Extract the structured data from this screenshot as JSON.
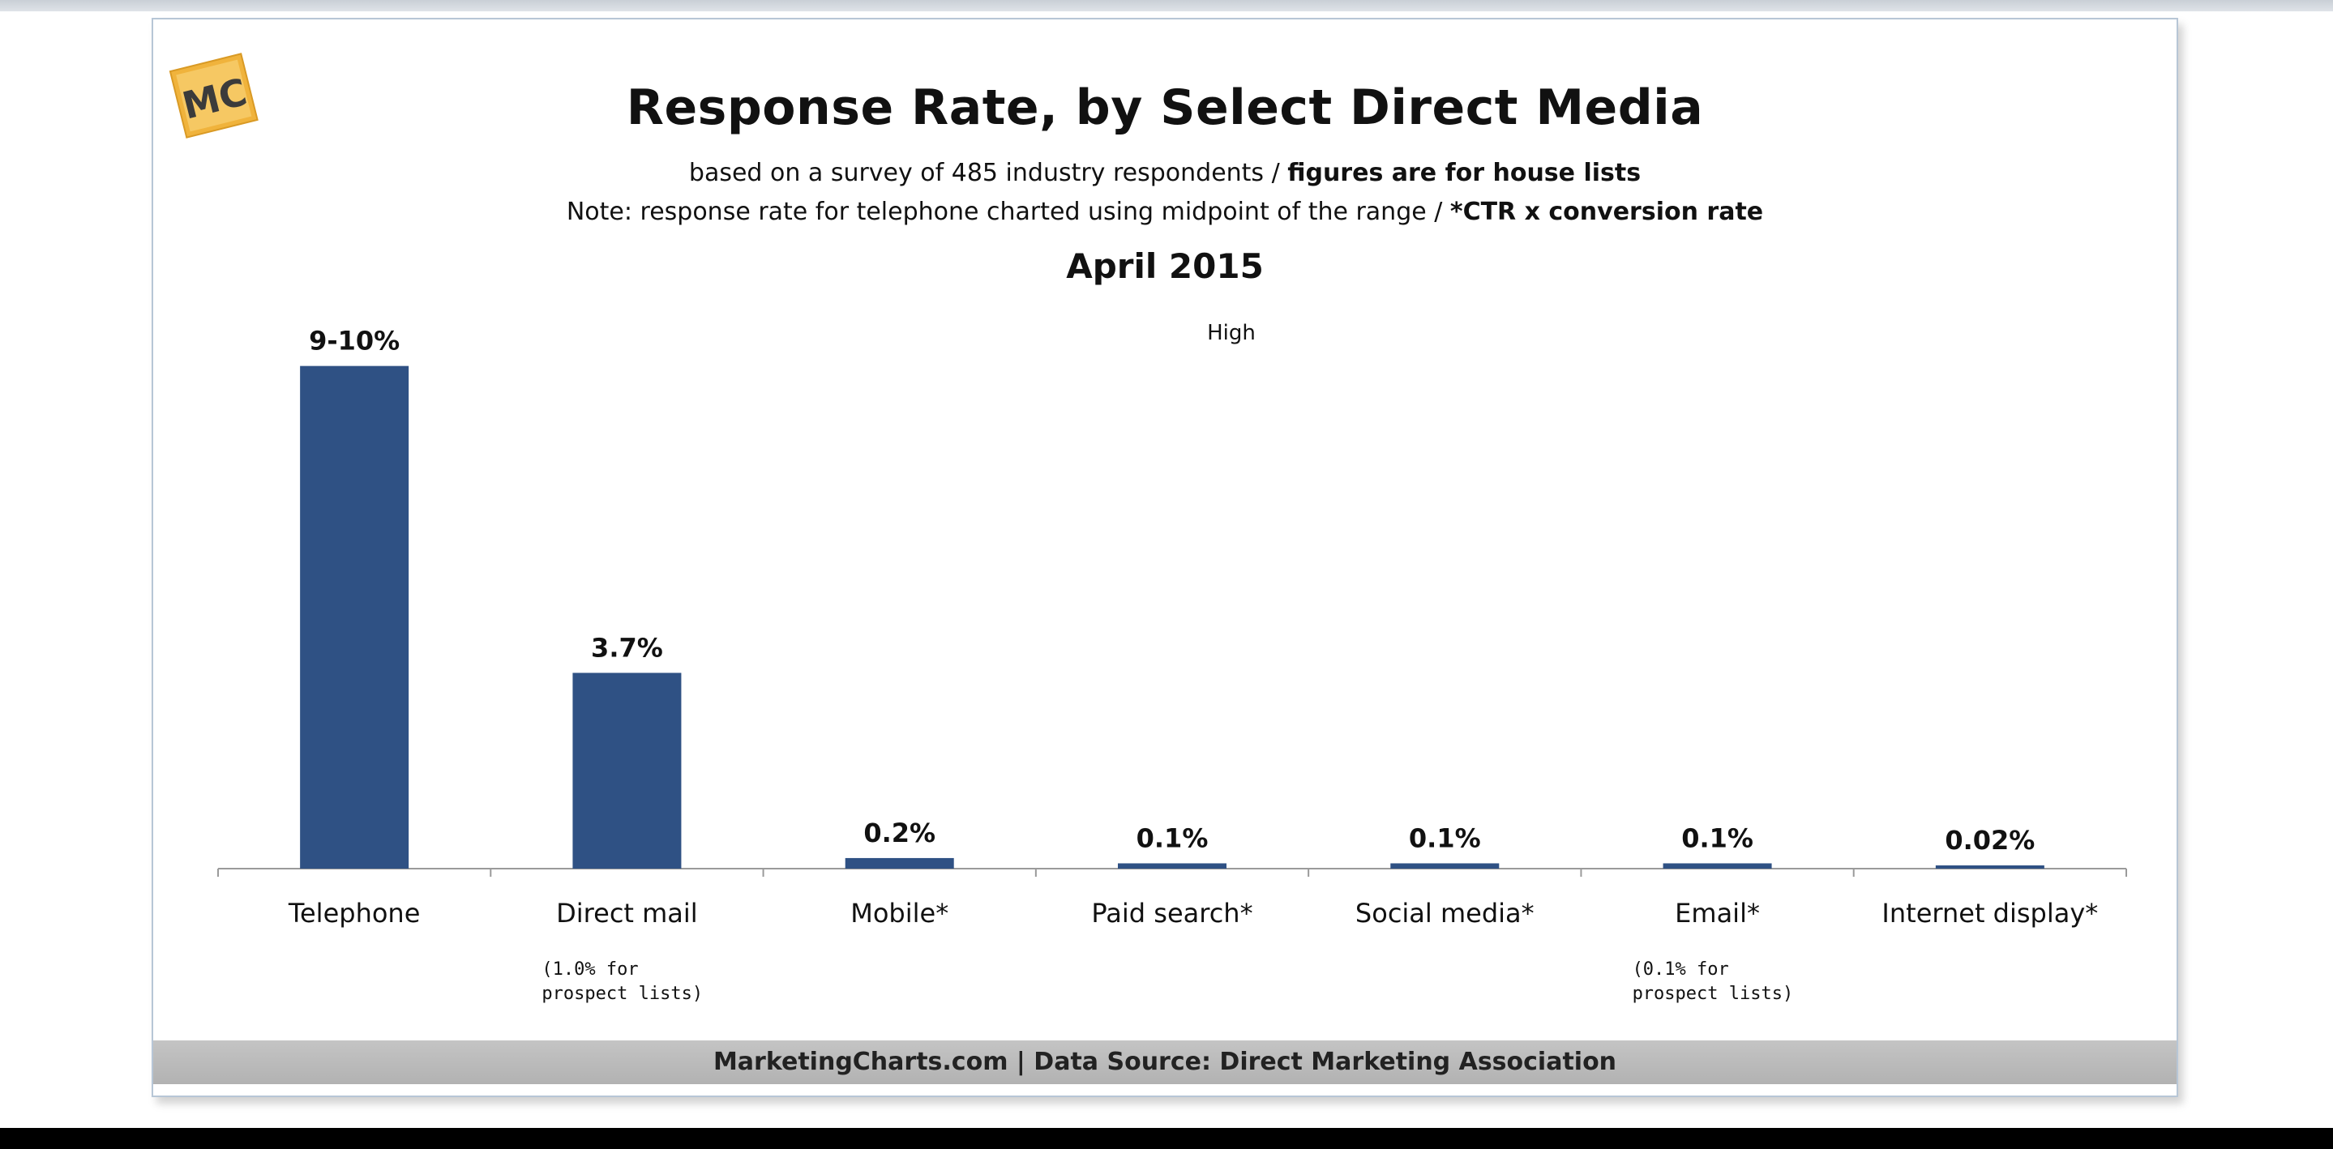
{
  "logo_text": "MC",
  "chart_data": {
    "type": "bar",
    "title": "Response Rate, by Select Direct Media",
    "subtitle_plain": "based on a survey of 485 industry respondents / ",
    "subtitle_bold": "figures are for house lists",
    "note_plain": "Note: response rate for telephone charted using midpoint of the range / ",
    "note_bold": "*CTR x conversion rate",
    "date": "April 2015",
    "legend": "High",
    "categories": [
      "Telephone",
      "Direct mail",
      "Mobile*",
      "Paid search*",
      "Social media*",
      "Email*",
      "Internet display*"
    ],
    "values": [
      9.5,
      3.7,
      0.2,
      0.1,
      0.1,
      0.1,
      0.02
    ],
    "value_labels": [
      "9-10%",
      "3.7%",
      "0.2%",
      "0.1%",
      "0.1%",
      "0.1%",
      "0.02%"
    ],
    "category_notes": [
      "",
      "(1.0% for\nprospect lists)",
      "",
      "",
      "",
      "(0.1% for\nprospect lists)",
      ""
    ],
    "ylim": [
      0,
      10
    ],
    "grid": false,
    "bar_color": "#2f5184"
  },
  "footer": "MarketingCharts.com | Data Source: Direct Marketing Association"
}
